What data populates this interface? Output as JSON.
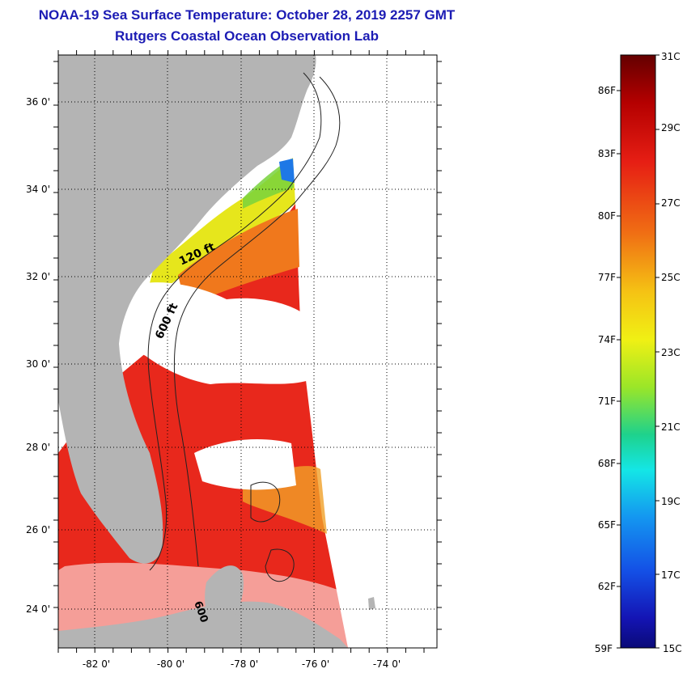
{
  "header": {
    "title_line_1": "NOAA-19 Sea Surface Temperature:  October 28, 2019 2257 GMT",
    "title_line_2": "Rutgers Coastal Ocean Observation Lab"
  },
  "map": {
    "lat_labels": [
      "36 0'",
      "34 0'",
      "32 0'",
      "30 0'",
      "28 0'",
      "26 0'",
      "24 0'"
    ],
    "lon_labels": [
      "-82 0'",
      "-80 0'",
      "-78 0'",
      "-76 0'",
      "-74 0'"
    ],
    "contour_labels": [
      "120 ft",
      "600 ft",
      "600"
    ],
    "colors": {
      "land": "#b4b4b4",
      "cloud": "#ffffff",
      "warm_sst": "#e8281c",
      "mid_sst": "#f0781c",
      "cool_sst": "#e6e61c"
    }
  },
  "legend": {
    "celsius_labels": [
      "31C",
      "29C",
      "27C",
      "25C",
      "23C",
      "21C",
      "19C",
      "17C",
      "15C"
    ],
    "fahrenheit_labels": [
      "86F",
      "83F",
      "80F",
      "77F",
      "74F",
      "71F",
      "68F",
      "65F",
      "62F",
      "59F"
    ]
  }
}
